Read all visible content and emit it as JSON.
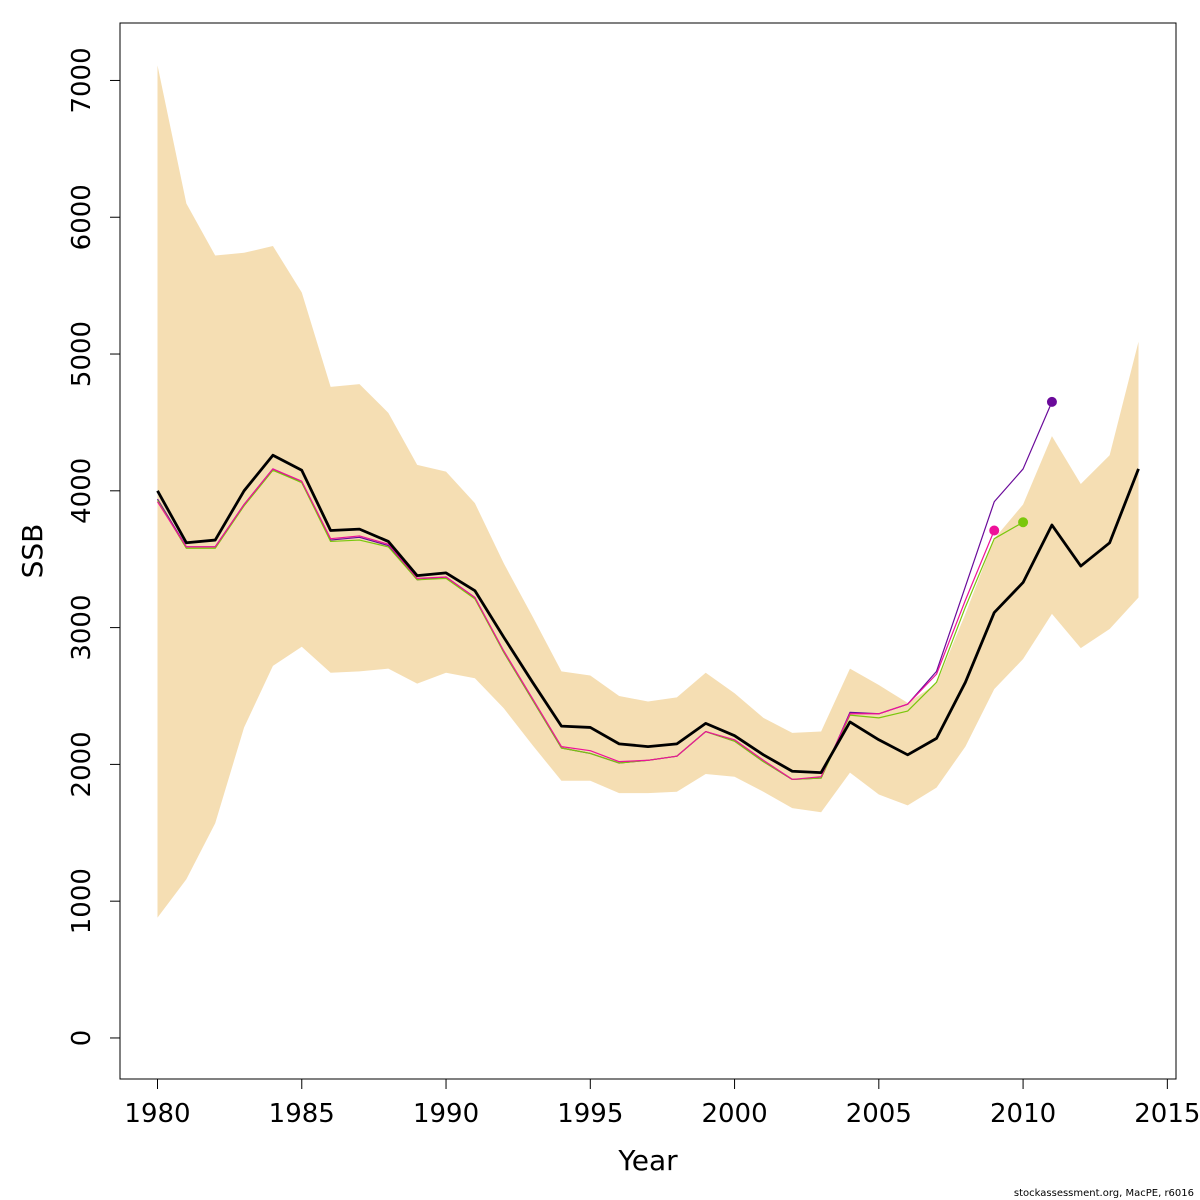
{
  "chart_data": {
    "type": "line",
    "xlabel": "Year",
    "ylabel": "SSB",
    "xlim": [
      1978.7,
      2015.3
    ],
    "ylim": [
      -300,
      7420
    ],
    "x_ticks": [
      "1980",
      "1985",
      "1990",
      "1995",
      "2000",
      "2005",
      "2010",
      "2015"
    ],
    "y_ticks": [
      "0",
      "1000",
      "2000",
      "3000",
      "4000",
      "5000",
      "6000",
      "7000"
    ],
    "grid": false,
    "legend": "none",
    "credit": "stockassessment.org, MacPE, r6016",
    "band": {
      "color": "#f5deb3",
      "x": [
        1980,
        1981,
        1982,
        1983,
        1984,
        1985,
        1986,
        1987,
        1988,
        1989,
        1990,
        1991,
        1992,
        1993,
        1994,
        1995,
        1996,
        1997,
        1998,
        1999,
        2000,
        2001,
        2002,
        2003,
        2004,
        2005,
        2006,
        2007,
        2008,
        2009,
        2010,
        2011,
        2012,
        2013,
        2014
      ],
      "upper": [
        7110,
        6100,
        5720,
        5740,
        5790,
        5450,
        4760,
        4780,
        4570,
        4190,
        4140,
        3910,
        3470,
        3080,
        2680,
        2650,
        2500,
        2460,
        2490,
        2670,
        2520,
        2340,
        2230,
        2240,
        2700,
        2580,
        2450,
        2590,
        3100,
        3650,
        3900,
        4400,
        4050,
        4260,
        5090
      ],
      "lower": [
        880,
        1160,
        1570,
        2270,
        2720,
        2860,
        2670,
        2680,
        2700,
        2590,
        2670,
        2630,
        2410,
        2140,
        1880,
        1880,
        1790,
        1790,
        1800,
        1930,
        1910,
        1800,
        1680,
        1650,
        1940,
        1780,
        1700,
        1830,
        2130,
        2550,
        2770,
        3100,
        2850,
        2990,
        3220
      ]
    },
    "series": [
      {
        "color": "#000000",
        "width": 2.8,
        "x": [
          1980,
          1981,
          1982,
          1983,
          1984,
          1985,
          1986,
          1987,
          1988,
          1989,
          1990,
          1991,
          1992,
          1993,
          1994,
          1995,
          1996,
          1997,
          1998,
          1999,
          2000,
          2001,
          2002,
          2003,
          2004,
          2005,
          2006,
          2007,
          2008,
          2009,
          2010,
          2011,
          2012,
          2013,
          2014
        ],
        "values": [
          4000,
          3620,
          3640,
          4000,
          4260,
          4150,
          3710,
          3720,
          3630,
          3380,
          3400,
          3270,
          2930,
          2600,
          2280,
          2270,
          2150,
          2130,
          2150,
          2300,
          2210,
          2070,
          1950,
          1940,
          2310,
          2180,
          2070,
          2190,
          2600,
          3110,
          3330,
          3750,
          3450,
          3620,
          4160
        ]
      },
      {
        "color": "#6a0a9a",
        "width": 1.2,
        "x": [
          1980,
          1981,
          1982,
          1983,
          1984,
          1985,
          1986,
          1987,
          1988,
          1989,
          1990,
          1991,
          1992,
          1993,
          1994,
          1995,
          1996,
          1997,
          1998,
          1999,
          2000,
          2001,
          2002,
          2003,
          2004,
          2005,
          2006,
          2007,
          2008,
          2009,
          2010,
          2011
        ],
        "values": [
          3940,
          3590,
          3590,
          3900,
          4160,
          4060,
          3640,
          3660,
          3600,
          3350,
          3370,
          3220,
          2820,
          2470,
          2120,
          2080,
          2010,
          2030,
          2060,
          2240,
          2170,
          2020,
          1890,
          1900,
          2380,
          2370,
          2440,
          2680,
          3300,
          3920,
          4160,
          4650
        ],
        "end_point": true
      },
      {
        "color": "#7ac70c",
        "width": 1.2,
        "x": [
          1980,
          1981,
          1982,
          1983,
          1984,
          1985,
          1986,
          1987,
          1988,
          1989,
          1990,
          1991,
          1992,
          1993,
          1994,
          1995,
          1996,
          1997,
          1998,
          1999,
          2000,
          2001,
          2002,
          2003,
          2004,
          2005,
          2006,
          2007,
          2008,
          2009,
          2010
        ],
        "values": [
          3930,
          3580,
          3580,
          3890,
          4150,
          4060,
          3630,
          3640,
          3590,
          3350,
          3360,
          3210,
          2820,
          2470,
          2120,
          2080,
          2010,
          2030,
          2060,
          2240,
          2170,
          2020,
          1890,
          1900,
          2360,
          2340,
          2390,
          2600,
          3150,
          3650,
          3770
        ],
        "end_point": true
      },
      {
        "color": "#ee1199",
        "width": 1.2,
        "x": [
          1980,
          1981,
          1982,
          1983,
          1984,
          1985,
          1986,
          1987,
          1988,
          1989,
          1990,
          1991,
          1992,
          1993,
          1994,
          1995,
          1996,
          1997,
          1998,
          1999,
          2000,
          2001,
          2002,
          2003,
          2004,
          2005,
          2006,
          2007,
          2008,
          2009
        ],
        "values": [
          3920,
          3590,
          3590,
          3900,
          4160,
          4070,
          3650,
          3670,
          3610,
          3360,
          3370,
          3220,
          2830,
          2480,
          2130,
          2100,
          2020,
          2030,
          2060,
          2240,
          2180,
          2030,
          1890,
          1910,
          2370,
          2370,
          2440,
          2660,
          3200,
          3710
        ],
        "end_point": true
      }
    ]
  }
}
